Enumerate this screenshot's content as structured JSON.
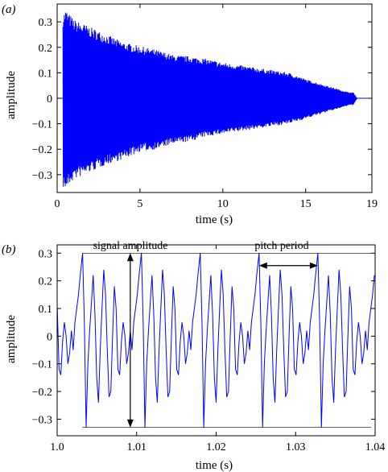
{
  "panels": {
    "a": {
      "label": "(a)"
    },
    "b": {
      "label": "(b)"
    }
  },
  "colors": {
    "signal": "#0000ff",
    "axis": "#000000"
  },
  "chart_data": [
    {
      "type": "line",
      "panel": "(a)",
      "xlabel": "time (s)",
      "ylabel": "amplitude",
      "xlim": [
        0,
        19
      ],
      "ylim": [
        -0.37,
        0.37
      ],
      "xticks": [
        0,
        5,
        10,
        15,
        19
      ],
      "yticks": [
        -0.3,
        -0.2,
        -0.1,
        0,
        0.1,
        0.2,
        0.3
      ],
      "ytick_labels": [
        "−0.3",
        "−0.2",
        "−0.1",
        "0",
        "0.1",
        "0.2",
        "0.3"
      ],
      "signal_start": 0.35,
      "signal_end": 18.1,
      "envelope": {
        "t": [
          0.35,
          0.5,
          1,
          2,
          3,
          4,
          5,
          6,
          7,
          8,
          9,
          10,
          11,
          12,
          13,
          14,
          15,
          16,
          17,
          17.5,
          17.9,
          18.1
        ],
        "upper": [
          0.33,
          0.35,
          0.31,
          0.28,
          0.25,
          0.22,
          0.205,
          0.19,
          0.17,
          0.165,
          0.155,
          0.14,
          0.13,
          0.12,
          0.11,
          0.1,
          0.075,
          0.055,
          0.035,
          0.025,
          0.022,
          0.0
        ],
        "lower": [
          -0.35,
          -0.36,
          -0.32,
          -0.29,
          -0.26,
          -0.24,
          -0.21,
          -0.2,
          -0.18,
          -0.17,
          -0.15,
          -0.14,
          -0.13,
          -0.12,
          -0.11,
          -0.1,
          -0.08,
          -0.06,
          -0.04,
          -0.03,
          -0.025,
          0.0
        ]
      }
    },
    {
      "type": "line",
      "panel": "(b)",
      "xlabel": "time (s)",
      "ylabel": "amplitude",
      "xlim": [
        1.0,
        1.04
      ],
      "ylim": [
        -0.36,
        0.33
      ],
      "xticks": [
        1.0,
        1.01,
        1.02,
        1.03,
        1.04
      ],
      "xtick_labels": [
        "1.0",
        "1.01",
        "1.02",
        "1.03",
        "1.04"
      ],
      "yticks": [
        -0.3,
        -0.2,
        -0.1,
        0,
        0.1,
        0.2,
        0.3
      ],
      "ytick_labels": [
        "−0.3",
        "−0.2",
        "−0.1",
        "0",
        "0.1",
        "0.2",
        "0.3"
      ],
      "period": 0.0074,
      "first_peak": 1.0032,
      "max_amplitude": 0.3,
      "min_amplitude": -0.33,
      "annotations": {
        "signal_amplitude": "signal amplitude",
        "pitch_period": "pitch period"
      },
      "period_shape": [
        [
          0.0,
          0.3
        ],
        [
          0.03,
          0.05
        ],
        [
          0.06,
          -0.33
        ],
        [
          0.09,
          -0.1
        ],
        [
          0.12,
          0.02
        ],
        [
          0.15,
          0.12
        ],
        [
          0.18,
          0.22
        ],
        [
          0.21,
          0.08
        ],
        [
          0.24,
          -0.15
        ],
        [
          0.27,
          -0.24
        ],
        [
          0.3,
          -0.05
        ],
        [
          0.33,
          0.1
        ],
        [
          0.36,
          0.24
        ],
        [
          0.39,
          0.15
        ],
        [
          0.42,
          -0.05
        ],
        [
          0.45,
          -0.22
        ],
        [
          0.48,
          -0.2
        ],
        [
          0.51,
          0.0
        ],
        [
          0.54,
          0.18
        ],
        [
          0.57,
          0.1
        ],
        [
          0.6,
          -0.12
        ],
        [
          0.63,
          -0.14
        ],
        [
          0.66,
          -0.02
        ],
        [
          0.69,
          0.05
        ],
        [
          0.72,
          0.0
        ],
        [
          0.75,
          -0.1
        ],
        [
          0.78,
          -0.06
        ],
        [
          0.81,
          0.02
        ],
        [
          0.84,
          -0.05
        ],
        [
          0.87,
          0.05
        ],
        [
          0.9,
          0.1
        ],
        [
          0.93,
          0.15
        ],
        [
          0.96,
          0.22
        ],
        [
          1.0,
          0.3
        ]
      ]
    }
  ]
}
